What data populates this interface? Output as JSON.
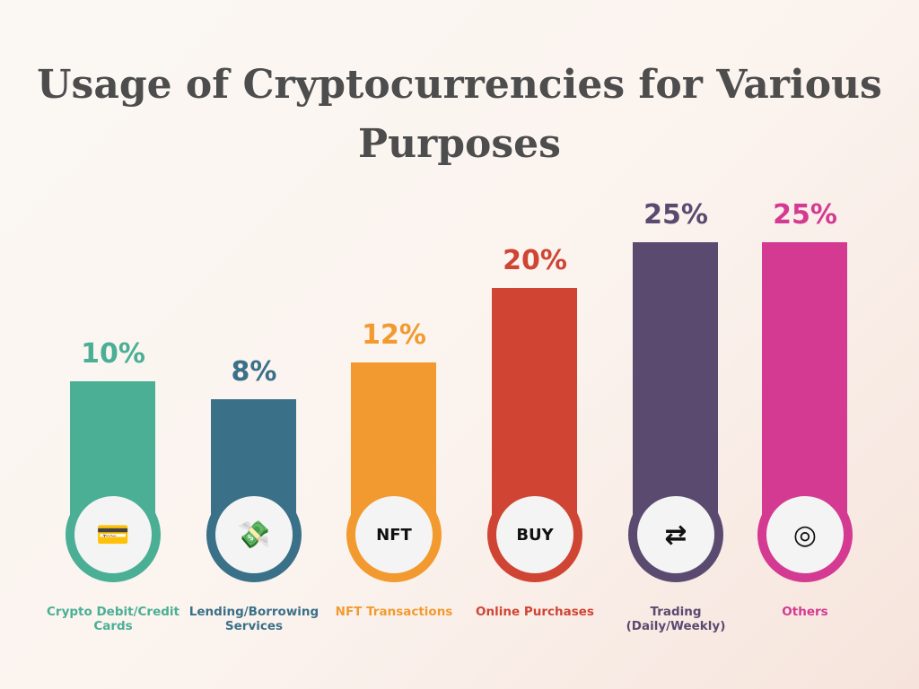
{
  "chart_data": {
    "type": "bar",
    "title": "Usage of Cryptocurrencies for Various Purposes",
    "xlabel": "",
    "ylabel": "",
    "ylim": [
      0,
      25
    ],
    "categories": [
      "Crypto Debit/Credit Cards",
      "Lending/Borrowing Services",
      "NFT Transactions",
      "Online Purchases",
      "Trading (Daily/Weekly)",
      "Others"
    ],
    "values": [
      10,
      8,
      12,
      20,
      25,
      25
    ],
    "value_labels": [
      "10%",
      "8%",
      "12%",
      "20%",
      "25%",
      "25%"
    ],
    "colors": [
      "#4aaf95",
      "#3b7089",
      "#f29a30",
      "#d04434",
      "#5b4a70",
      "#d43a91"
    ],
    "icons": [
      "credit-card-icon",
      "money-hand-icon",
      "nft-hand-icon",
      "buy-button-icon",
      "handshake-trade-icon",
      "target-icon"
    ]
  }
}
